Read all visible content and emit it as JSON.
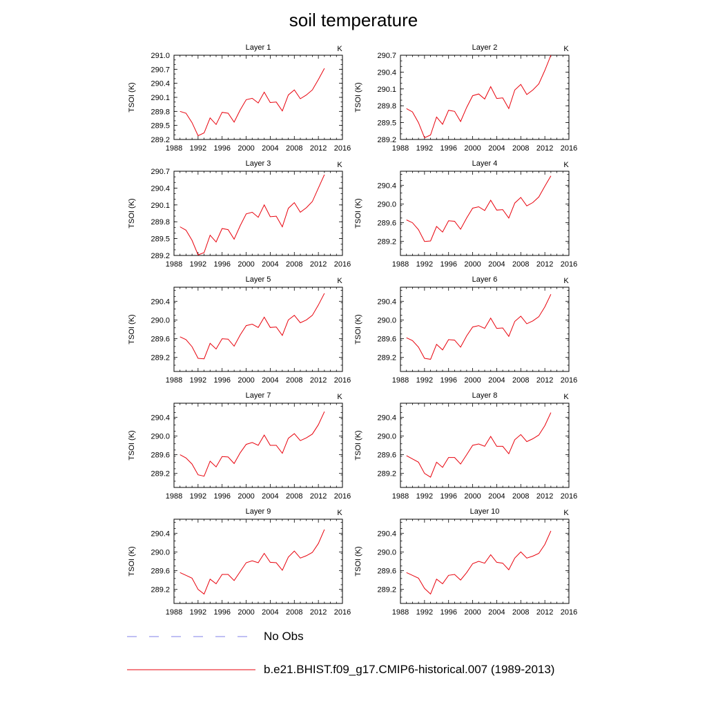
{
  "title": "soil temperature",
  "legend": [
    {
      "label": "No Obs",
      "color": "#9999ee",
      "style": "dashed"
    },
    {
      "label": "b.e21.BHIST.f09_g17.CMIP6-historical.007 (1989-2013)",
      "color": "#e8000b",
      "style": "solid"
    }
  ],
  "chart_data": [
    {
      "type": "line",
      "title": "Layer 1",
      "units": "K",
      "ylabel": "TSOI  (K)",
      "xlim": [
        1988,
        2016
      ],
      "xticks": [
        1988,
        1992,
        1996,
        2000,
        2004,
        2008,
        2012,
        2016
      ],
      "ylim": [
        289.2,
        291.0
      ],
      "yticks": [
        "289.2",
        "289.5",
        "289.8",
        "290.1",
        "290.4",
        "290.7",
        "291.0"
      ],
      "series": [
        {
          "color": "#e8000b",
          "x": [
            1989,
            1990,
            1991,
            1992,
            1993,
            1994,
            1995,
            1996,
            1997,
            1998,
            1999,
            2000,
            2001,
            2002,
            2003,
            2004,
            2005,
            2006,
            2007,
            2008,
            2009,
            2010,
            2011,
            2012,
            2013
          ],
          "values": [
            289.8,
            289.76,
            289.56,
            289.28,
            289.34,
            289.66,
            289.52,
            289.78,
            289.76,
            289.57,
            289.83,
            290.05,
            290.08,
            289.98,
            290.21,
            289.99,
            290.0,
            289.81,
            290.15,
            290.26,
            290.07,
            290.15,
            290.26,
            290.48,
            290.72
          ]
        }
      ]
    },
    {
      "type": "line",
      "title": "Layer 2",
      "units": "K",
      "ylabel": "TSOI  (K)",
      "xlim": [
        1988,
        2016
      ],
      "xticks": [
        1988,
        1992,
        1996,
        2000,
        2004,
        2008,
        2012,
        2016
      ],
      "ylim": [
        289.2,
        290.7
      ],
      "yticks": [
        "289.2",
        "289.5",
        "289.8",
        "290.1",
        "290.4",
        "290.7"
      ],
      "series": [
        {
          "color": "#e8000b",
          "x": [
            1989,
            1990,
            1991,
            1992,
            1993,
            1994,
            1995,
            1996,
            1997,
            1998,
            1999,
            2000,
            2001,
            2002,
            2003,
            2004,
            2005,
            2006,
            2007,
            2008,
            2009,
            2010,
            2011,
            2012,
            2013
          ],
          "values": [
            289.75,
            289.69,
            289.5,
            289.23,
            289.28,
            289.6,
            289.47,
            289.72,
            289.7,
            289.52,
            289.77,
            289.98,
            290.01,
            289.92,
            290.14,
            289.93,
            289.94,
            289.75,
            290.08,
            290.18,
            290.0,
            290.08,
            290.19,
            290.43,
            290.7
          ]
        }
      ]
    },
    {
      "type": "line",
      "title": "Layer 3",
      "units": "K",
      "ylabel": "TSOI  (K)",
      "xlim": [
        1988,
        2016
      ],
      "xticks": [
        1988,
        1992,
        1996,
        2000,
        2004,
        2008,
        2012,
        2016
      ],
      "ylim": [
        289.2,
        290.7
      ],
      "yticks": [
        "289.2",
        "289.5",
        "289.8",
        "290.1",
        "290.4",
        "290.7"
      ],
      "series": [
        {
          "color": "#e8000b",
          "x": [
            1989,
            1990,
            1991,
            1992,
            1993,
            1994,
            1995,
            1996,
            1997,
            1998,
            1999,
            2000,
            2001,
            2002,
            2003,
            2004,
            2005,
            2006,
            2007,
            2008,
            2009,
            2010,
            2011,
            2012,
            2013
          ],
          "values": [
            289.71,
            289.65,
            289.47,
            289.21,
            289.25,
            289.56,
            289.44,
            289.68,
            289.66,
            289.49,
            289.73,
            289.94,
            289.97,
            289.88,
            290.1,
            289.89,
            289.9,
            289.71,
            290.04,
            290.14,
            289.97,
            290.05,
            290.16,
            290.4,
            290.64
          ]
        }
      ]
    },
    {
      "type": "line",
      "title": "Layer 4",
      "units": "K",
      "ylabel": "TSOI  (K)",
      "xlim": [
        1988,
        2016
      ],
      "xticks": [
        1988,
        1992,
        1996,
        2000,
        2004,
        2008,
        2012,
        2016
      ],
      "ylim": [
        288.9,
        290.7
      ],
      "yticks": [
        "289.2",
        "289.6",
        "290.0",
        "290.4"
      ],
      "series": [
        {
          "color": "#e8000b",
          "x": [
            1989,
            1990,
            1991,
            1992,
            1993,
            1994,
            1995,
            1996,
            1997,
            1998,
            1999,
            2000,
            2001,
            2002,
            2003,
            2004,
            2005,
            2006,
            2007,
            2008,
            2009,
            2010,
            2011,
            2012,
            2013
          ],
          "values": [
            289.66,
            289.6,
            289.45,
            289.2,
            289.21,
            289.52,
            289.4,
            289.64,
            289.63,
            289.46,
            289.7,
            289.91,
            289.94,
            289.86,
            290.08,
            289.87,
            289.88,
            289.7,
            290.02,
            290.14,
            289.96,
            290.03,
            290.15,
            290.38,
            290.6
          ]
        }
      ]
    },
    {
      "type": "line",
      "title": "Layer 5",
      "units": "K",
      "ylabel": "TSOI  (K)",
      "xlim": [
        1988,
        2016
      ],
      "xticks": [
        1988,
        1992,
        1996,
        2000,
        2004,
        2008,
        2012,
        2016
      ],
      "ylim": [
        288.9,
        290.7
      ],
      "yticks": [
        "289.2",
        "289.6",
        "290.0",
        "290.4"
      ],
      "series": [
        {
          "color": "#e8000b",
          "x": [
            1989,
            1990,
            1991,
            1992,
            1993,
            1994,
            1995,
            1996,
            1997,
            1998,
            1999,
            2000,
            2001,
            2002,
            2003,
            2004,
            2005,
            2006,
            2007,
            2008,
            2009,
            2010,
            2011,
            2012,
            2013
          ],
          "values": [
            289.64,
            289.58,
            289.43,
            289.18,
            289.17,
            289.5,
            289.38,
            289.6,
            289.59,
            289.44,
            289.68,
            289.88,
            289.91,
            289.84,
            290.06,
            289.84,
            289.85,
            289.67,
            290.0,
            290.1,
            289.94,
            290.0,
            290.1,
            290.32,
            290.57
          ]
        }
      ]
    },
    {
      "type": "line",
      "title": "Layer 6",
      "units": "K",
      "ylabel": "TSOI  (K)",
      "xlim": [
        1988,
        2016
      ],
      "xticks": [
        1988,
        1992,
        1996,
        2000,
        2004,
        2008,
        2012,
        2016
      ],
      "ylim": [
        288.9,
        290.7
      ],
      "yticks": [
        "289.2",
        "289.6",
        "290.0",
        "290.4"
      ],
      "series": [
        {
          "color": "#e8000b",
          "x": [
            1989,
            1990,
            1991,
            1992,
            1993,
            1994,
            1995,
            1996,
            1997,
            1998,
            1999,
            2000,
            2001,
            2002,
            2003,
            2004,
            2005,
            2006,
            2007,
            2008,
            2009,
            2010,
            2011,
            2012,
            2013
          ],
          "values": [
            289.62,
            289.56,
            289.42,
            289.18,
            289.16,
            289.48,
            289.36,
            289.58,
            289.57,
            289.42,
            289.66,
            289.85,
            289.88,
            289.82,
            290.04,
            289.82,
            289.83,
            289.65,
            289.97,
            290.08,
            289.92,
            289.98,
            290.07,
            290.28,
            290.55
          ]
        }
      ]
    },
    {
      "type": "line",
      "title": "Layer 7",
      "units": "K",
      "ylabel": "TSOI  (K)",
      "xlim": [
        1988,
        2016
      ],
      "xticks": [
        1988,
        1992,
        1996,
        2000,
        2004,
        2008,
        2012,
        2016
      ],
      "ylim": [
        288.9,
        290.7
      ],
      "yticks": [
        "289.2",
        "289.6",
        "290.0",
        "290.4"
      ],
      "series": [
        {
          "color": "#e8000b",
          "x": [
            1989,
            1990,
            1991,
            1992,
            1993,
            1994,
            1995,
            1996,
            1997,
            1998,
            1999,
            2000,
            2001,
            2002,
            2003,
            2004,
            2005,
            2006,
            2007,
            2008,
            2009,
            2010,
            2011,
            2012,
            2013
          ],
          "values": [
            289.6,
            289.53,
            289.4,
            289.17,
            289.14,
            289.46,
            289.34,
            289.56,
            289.55,
            289.41,
            289.64,
            289.82,
            289.86,
            289.8,
            290.02,
            289.8,
            289.8,
            289.63,
            289.95,
            290.05,
            289.9,
            289.96,
            290.04,
            290.24,
            290.52
          ]
        }
      ]
    },
    {
      "type": "line",
      "title": "Layer 8",
      "units": "K",
      "ylabel": "TSOI  (K)",
      "xlim": [
        1988,
        2016
      ],
      "xticks": [
        1988,
        1992,
        1996,
        2000,
        2004,
        2008,
        2012,
        2016
      ],
      "ylim": [
        288.9,
        290.7
      ],
      "yticks": [
        "289.2",
        "289.6",
        "290.0",
        "290.4"
      ],
      "series": [
        {
          "color": "#e8000b",
          "x": [
            1989,
            1990,
            1991,
            1992,
            1993,
            1994,
            1995,
            1996,
            1997,
            1998,
            1999,
            2000,
            2001,
            2002,
            2003,
            2004,
            2005,
            2006,
            2007,
            2008,
            2009,
            2010,
            2011,
            2012,
            2013
          ],
          "values": [
            289.58,
            289.51,
            289.44,
            289.2,
            289.12,
            289.44,
            289.33,
            289.54,
            289.54,
            289.4,
            289.6,
            289.8,
            289.83,
            289.78,
            289.99,
            289.78,
            289.78,
            289.62,
            289.92,
            290.03,
            289.88,
            289.94,
            290.02,
            290.22,
            290.5
          ]
        }
      ]
    },
    {
      "type": "line",
      "title": "Layer 9",
      "units": "K",
      "ylabel": "TSOI  (K)",
      "xlim": [
        1988,
        2016
      ],
      "xticks": [
        1988,
        1992,
        1996,
        2000,
        2004,
        2008,
        2012,
        2016
      ],
      "ylim": [
        288.9,
        290.7
      ],
      "yticks": [
        "289.2",
        "289.6",
        "290.0",
        "290.4"
      ],
      "series": [
        {
          "color": "#e8000b",
          "x": [
            1989,
            1990,
            1991,
            1992,
            1993,
            1994,
            1995,
            1996,
            1997,
            1998,
            1999,
            2000,
            2001,
            2002,
            2003,
            2004,
            2005,
            2006,
            2007,
            2008,
            2009,
            2010,
            2011,
            2012,
            2013
          ],
          "values": [
            289.56,
            289.5,
            289.44,
            289.2,
            289.1,
            289.42,
            289.32,
            289.52,
            289.52,
            289.39,
            289.58,
            289.77,
            289.81,
            289.77,
            289.97,
            289.78,
            289.77,
            289.61,
            289.89,
            290.02,
            289.87,
            289.92,
            289.99,
            290.18,
            290.48
          ]
        }
      ]
    },
    {
      "type": "line",
      "title": "Layer 10",
      "units": "K",
      "ylabel": "TSOI  (K)",
      "xlim": [
        1988,
        2016
      ],
      "xticks": [
        1988,
        1992,
        1996,
        2000,
        2004,
        2008,
        2012,
        2016
      ],
      "ylim": [
        288.9,
        290.7
      ],
      "yticks": [
        "289.2",
        "289.6",
        "290.0",
        "290.4"
      ],
      "series": [
        {
          "color": "#e8000b",
          "x": [
            1989,
            1990,
            1991,
            1992,
            1993,
            1994,
            1995,
            1996,
            1997,
            1998,
            1999,
            2000,
            2001,
            2002,
            2003,
            2004,
            2005,
            2006,
            2007,
            2008,
            2009,
            2010,
            2011,
            2012,
            2013
          ],
          "values": [
            289.56,
            289.5,
            289.44,
            289.22,
            289.1,
            289.42,
            289.32,
            289.5,
            289.52,
            289.4,
            289.56,
            289.75,
            289.8,
            289.76,
            289.94,
            289.78,
            289.76,
            289.62,
            289.87,
            290.0,
            289.87,
            289.91,
            289.97,
            290.16,
            290.45
          ]
        }
      ]
    }
  ]
}
